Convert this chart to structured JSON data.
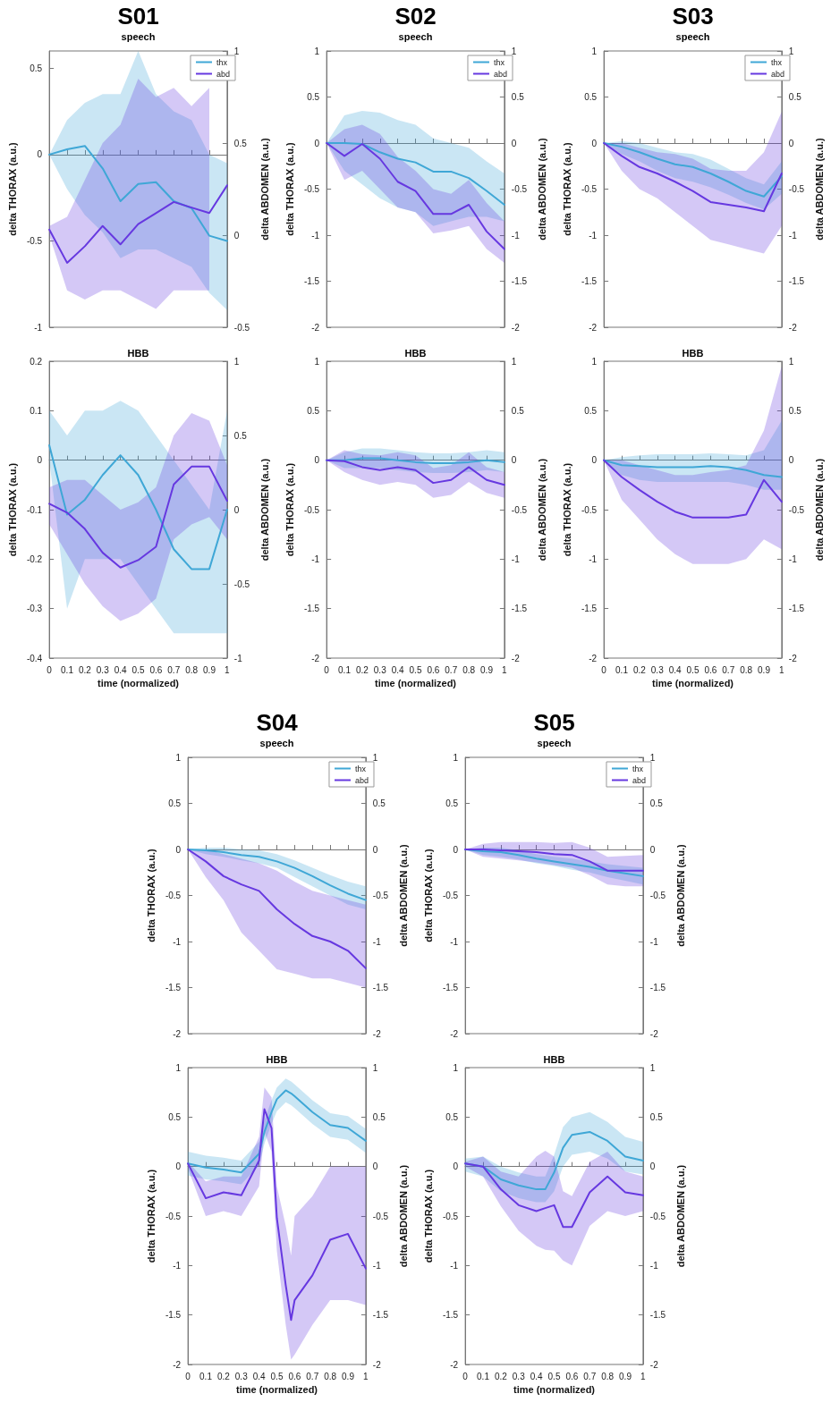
{
  "chart_data": [
    {
      "type": "line",
      "title": "S01",
      "subtitle": "speech",
      "ylabel": "delta THORAX (a.u.)",
      "y2label": "delta ABDOMEN (a.u.)",
      "x": [
        0,
        0.1,
        0.2,
        0.3,
        0.4,
        0.5,
        0.6,
        0.7,
        0.8,
        0.9,
        1
      ],
      "xlim": [
        0,
        1
      ],
      "xticks": [
        0,
        0.1,
        0.2,
        0.3,
        0.4,
        0.5,
        0.6,
        0.7,
        0.8,
        0.9,
        1
      ],
      "ylim": [
        -1,
        0.6
      ],
      "yticks": [
        -1,
        -0.5,
        0,
        0.5
      ],
      "y2lim": [
        -0.5,
        1
      ],
      "y2ticks": [
        -0.5,
        0,
        0.5,
        1
      ],
      "tick_labels": "y",
      "legend": "top right",
      "series": [
        {
          "name": "thx",
          "color": "#3fa7d6",
          "values": [
            0,
            0.03,
            0.05,
            -0.08,
            -0.27,
            -0.17,
            -0.16,
            -0.27,
            -0.31,
            -0.47,
            -0.5
          ],
          "lower": [
            0,
            -0.2,
            -0.35,
            -0.45,
            -0.6,
            -0.55,
            -0.55,
            -0.6,
            -0.65,
            -0.8,
            -0.9
          ],
          "upper": [
            0,
            0.2,
            0.3,
            0.35,
            0.35,
            0.6,
            0.35,
            0.25,
            0.2,
            0,
            -0.05
          ]
        },
        {
          "name": "abd",
          "color": "#6638e0",
          "axis": "y2",
          "values": [
            0.03,
            -0.15,
            -0.06,
            0.05,
            -0.05,
            0.06,
            0.12,
            0.18,
            0.15,
            0.12,
            0.27
          ],
          "lower": [
            0,
            -0.3,
            -0.35,
            -0.3,
            -0.3,
            -0.35,
            -0.4,
            -0.3,
            -0.3,
            -0.3,
            null
          ],
          "upper": [
            0.05,
            0.1,
            0.3,
            0.5,
            0.6,
            0.85,
            0.75,
            0.8,
            0.7,
            0.8,
            null
          ]
        }
      ]
    },
    {
      "type": "line",
      "title": "S02",
      "subtitle": "speech",
      "ylabel": "delta THORAX (a.u.)",
      "y2label": "delta ABDOMEN (a.u.)",
      "x": [
        0,
        0.1,
        0.2,
        0.3,
        0.4,
        0.5,
        0.6,
        0.7,
        0.8,
        0.9,
        1
      ],
      "xlim": [
        0,
        1
      ],
      "xticks": [
        0,
        0.1,
        0.2,
        0.3,
        0.4,
        0.5,
        0.6,
        0.7,
        0.8,
        0.9,
        1
      ],
      "ylim": [
        -2,
        1
      ],
      "yticks": [
        -2,
        -1.5,
        -1,
        -0.5,
        0,
        0.5,
        1
      ],
      "y2lim": [
        -2,
        1
      ],
      "y2ticks": [
        -2,
        -1.5,
        -1,
        -0.5,
        0,
        0.5,
        1
      ],
      "tick_labels": "y",
      "legend": "top right",
      "series": [
        {
          "name": "thx",
          "color": "#3fa7d6",
          "values": [
            0,
            0,
            -0.01,
            -0.1,
            -0.17,
            -0.21,
            -0.31,
            -0.31,
            -0.38,
            -0.52,
            -0.67
          ],
          "lower": [
            0,
            -0.3,
            -0.45,
            -0.6,
            -0.7,
            -0.75,
            -0.9,
            -0.85,
            -0.8,
            -0.8,
            -0.85
          ],
          "upper": [
            0,
            0.3,
            0.35,
            0.33,
            0.25,
            0.2,
            0.05,
            0,
            -0.05,
            -0.2,
            -0.33
          ]
        },
        {
          "name": "abd",
          "color": "#6638e0",
          "axis": "y2",
          "values": [
            0,
            -0.14,
            -0.01,
            -0.17,
            -0.42,
            -0.52,
            -0.77,
            -0.77,
            -0.67,
            -0.96,
            -1.15
          ],
          "lower": [
            0,
            -0.4,
            -0.3,
            -0.5,
            -0.7,
            -0.75,
            -0.98,
            -0.95,
            -0.9,
            -1.15,
            -1.3
          ],
          "upper": [
            0,
            0.15,
            0.2,
            0.1,
            -0.15,
            -0.3,
            -0.5,
            -0.55,
            -0.4,
            -0.65,
            -0.85
          ]
        }
      ]
    },
    {
      "type": "line",
      "title": "S03",
      "subtitle": "speech",
      "ylabel": "delta THORAX (a.u.)",
      "y2label": "delta ABDOMEN (a.u.)",
      "x": [
        0,
        0.1,
        0.2,
        0.3,
        0.4,
        0.5,
        0.6,
        0.7,
        0.8,
        0.9,
        1
      ],
      "xlim": [
        0,
        1
      ],
      "xticks": [
        0,
        0.1,
        0.2,
        0.3,
        0.4,
        0.5,
        0.6,
        0.7,
        0.8,
        0.9,
        1
      ],
      "ylim": [
        -2,
        1
      ],
      "yticks": [
        -2,
        -1.5,
        -1,
        -0.5,
        0,
        0.5,
        1
      ],
      "y2lim": [
        -2,
        1
      ],
      "y2ticks": [
        -2,
        -1.5,
        -1,
        -0.5,
        0,
        0.5,
        1
      ],
      "tick_labels": "y",
      "legend": "top right",
      "series": [
        {
          "name": "thx",
          "color": "#3fa7d6",
          "values": [
            0,
            -0.04,
            -0.1,
            -0.17,
            -0.23,
            -0.26,
            -0.33,
            -0.42,
            -0.52,
            -0.58,
            -0.36
          ],
          "lower": [
            0,
            -0.12,
            -0.2,
            -0.3,
            -0.38,
            -0.42,
            -0.48,
            -0.56,
            -0.65,
            -0.72,
            -0.55
          ],
          "upper": [
            0,
            0.02,
            0,
            -0.05,
            -0.1,
            -0.12,
            -0.18,
            -0.28,
            -0.38,
            -0.45,
            -0.2
          ]
        },
        {
          "name": "abd",
          "color": "#6638e0",
          "axis": "y2",
          "values": [
            0,
            -0.14,
            -0.26,
            -0.33,
            -0.42,
            -0.52,
            -0.64,
            -0.67,
            -0.7,
            -0.74,
            -0.33
          ],
          "lower": [
            0,
            -0.3,
            -0.5,
            -0.6,
            -0.75,
            -0.9,
            -1.05,
            -1.1,
            -1.15,
            -1.2,
            -0.9
          ],
          "upper": [
            0,
            0,
            -0.05,
            -0.1,
            -0.12,
            -0.17,
            -0.28,
            -0.3,
            -0.3,
            -0.1,
            0.34
          ]
        }
      ]
    },
    {
      "type": "line",
      "title": "HBB",
      "xlabel": "time (normalized)",
      "ylabel": "delta THORAX (a.u.)",
      "y2label": "delta ABDOMEN (a.u.)",
      "x": [
        0,
        0.1,
        0.2,
        0.3,
        0.4,
        0.5,
        0.6,
        0.7,
        0.8,
        0.9,
        1
      ],
      "xlim": [
        0,
        1
      ],
      "xticks": [
        0,
        0.1,
        0.2,
        0.3,
        0.4,
        0.5,
        0.6,
        0.7,
        0.8,
        0.9,
        1
      ],
      "ylim": [
        -0.4,
        0.2
      ],
      "yticks": [
        -0.4,
        -0.3,
        -0.2,
        -0.1,
        0,
        0.1,
        0.2
      ],
      "y2lim": [
        -1,
        1
      ],
      "y2ticks": [
        -1,
        -0.5,
        0,
        0.5,
        1
      ],
      "series": [
        {
          "color": "#3fa7d6",
          "values": [
            0.03,
            -0.11,
            -0.08,
            -0.03,
            0.01,
            -0.03,
            -0.1,
            -0.18,
            -0.22,
            -0.22,
            -0.1
          ],
          "lower": [
            0,
            -0.3,
            -0.2,
            -0.2,
            -0.2,
            -0.25,
            -0.3,
            -0.35,
            -0.35,
            -0.35,
            -0.35
          ],
          "upper": [
            0.1,
            0.05,
            0.1,
            0.1,
            0.12,
            0.1,
            0.05,
            0,
            -0.05,
            -0.1,
            0.1
          ]
        },
        {
          "color": "#6638e0",
          "axis": "y2",
          "values": [
            0.04,
            -0.02,
            -0.13,
            -0.29,
            -0.39,
            -0.34,
            -0.25,
            0.17,
            0.29,
            0.29,
            0.06
          ],
          "lower": [
            -0.1,
            -0.3,
            -0.5,
            -0.65,
            -0.75,
            -0.7,
            -0.6,
            -0.2,
            -0.1,
            -0.05,
            -0.2
          ],
          "upper": [
            0.15,
            0.2,
            0.2,
            0.1,
            0,
            0.05,
            0.15,
            0.5,
            0.65,
            0.6,
            0.3
          ]
        }
      ]
    },
    {
      "type": "line",
      "title": "HBB",
      "xlabel": "time (normalized)",
      "ylabel": "delta THORAX (a.u.)",
      "y2label": "delta ABDOMEN (a.u.)",
      "x": [
        0,
        0.1,
        0.2,
        0.3,
        0.4,
        0.5,
        0.6,
        0.7,
        0.8,
        0.9,
        1
      ],
      "xlim": [
        0,
        1
      ],
      "xticks": [
        0,
        0.1,
        0.2,
        0.3,
        0.4,
        0.5,
        0.6,
        0.7,
        0.8,
        0.9,
        1
      ],
      "ylim": [
        -2,
        1
      ],
      "yticks": [
        -2,
        -1.5,
        -1,
        -0.5,
        0,
        0.5,
        1
      ],
      "y2lim": [
        -2,
        1
      ],
      "y2ticks": [
        -2,
        -1.5,
        -1,
        -0.5,
        0,
        0.5,
        1
      ],
      "series": [
        {
          "color": "#3fa7d6",
          "values": [
            0,
            0,
            0.02,
            0.02,
            0,
            -0.02,
            -0.03,
            -0.03,
            -0.02,
            0,
            -0.02
          ],
          "lower": [
            0,
            -0.08,
            -0.08,
            -0.08,
            -0.1,
            -0.12,
            -0.13,
            -0.13,
            -0.12,
            -0.1,
            -0.12
          ],
          "upper": [
            0,
            0.08,
            0.12,
            0.12,
            0.1,
            0.08,
            0.07,
            0.07,
            0.08,
            0.1,
            0.08
          ]
        },
        {
          "color": "#6638e0",
          "axis": "y2",
          "values": [
            0,
            -0.01,
            -0.07,
            -0.1,
            -0.07,
            -0.1,
            -0.23,
            -0.2,
            -0.07,
            -0.2,
            -0.25
          ],
          "lower": [
            0,
            -0.12,
            -0.2,
            -0.25,
            -0.22,
            -0.25,
            -0.38,
            -0.35,
            -0.22,
            -0.33,
            -0.38
          ],
          "upper": [
            0,
            0.1,
            0.06,
            0.05,
            0.08,
            0.05,
            -0.08,
            -0.05,
            0.08,
            -0.07,
            -0.12
          ]
        }
      ]
    },
    {
      "type": "line",
      "title": "HBB",
      "xlabel": "time (normalized)",
      "ylabel": "delta THORAX (a.u.)",
      "y2label": "delta ABDOMEN (a.u.)",
      "x": [
        0,
        0.1,
        0.2,
        0.3,
        0.4,
        0.5,
        0.6,
        0.7,
        0.8,
        0.9,
        1
      ],
      "xlim": [
        0,
        1
      ],
      "xticks": [
        0,
        0.1,
        0.2,
        0.3,
        0.4,
        0.5,
        0.6,
        0.7,
        0.8,
        0.9,
        1
      ],
      "ylim": [
        -2,
        1
      ],
      "yticks": [
        -2,
        -1.5,
        -1,
        -0.5,
        0,
        0.5,
        1
      ],
      "y2lim": [
        -2,
        1
      ],
      "y2ticks": [
        -2,
        -1.5,
        -1,
        -0.5,
        0,
        0.5,
        1
      ],
      "series": [
        {
          "color": "#3fa7d6",
          "values": [
            0,
            -0.05,
            -0.06,
            -0.07,
            -0.07,
            -0.07,
            -0.06,
            -0.07,
            -0.1,
            -0.15,
            -0.17
          ],
          "lower": [
            0,
            -0.15,
            -0.2,
            -0.22,
            -0.22,
            -0.22,
            -0.22,
            -0.22,
            -0.25,
            -0.3,
            -0.3
          ],
          "upper": [
            0,
            0.03,
            0.05,
            0.06,
            0.06,
            0.06,
            0.07,
            0.06,
            0.05,
            0.1,
            0.4
          ]
        },
        {
          "color": "#6638e0",
          "axis": "y2",
          "values": [
            0,
            -0.17,
            -0.3,
            -0.42,
            -0.52,
            -0.58,
            -0.58,
            -0.58,
            -0.55,
            -0.2,
            -0.42
          ],
          "lower": [
            0,
            -0.4,
            -0.6,
            -0.8,
            -0.95,
            -1.05,
            -1.05,
            -1.05,
            -1,
            -0.8,
            -0.9
          ],
          "upper": [
            0,
            0,
            -0.05,
            -0.1,
            -0.15,
            -0.15,
            -0.12,
            -0.1,
            -0.05,
            0.3,
            0.95
          ]
        }
      ]
    },
    {
      "type": "line",
      "title": "S04",
      "subtitle": "speech",
      "ylabel": "delta THORAX (a.u.)",
      "y2label": "delta ABDOMEN (a.u.)",
      "x": [
        0,
        0.1,
        0.2,
        0.3,
        0.4,
        0.5,
        0.6,
        0.7,
        0.8,
        0.9,
        1
      ],
      "xlim": [
        0,
        1
      ],
      "xticks": [
        0,
        0.1,
        0.2,
        0.3,
        0.4,
        0.5,
        0.6,
        0.7,
        0.8,
        0.9,
        1
      ],
      "ylim": [
        -2,
        1
      ],
      "yticks": [
        -2,
        -1.5,
        -1,
        -0.5,
        0,
        0.5,
        1
      ],
      "y2lim": [
        -2,
        1
      ],
      "y2ticks": [
        -2,
        -1.5,
        -1,
        -0.5,
        0,
        0.5,
        1
      ],
      "tick_labels": "y",
      "legend": "top right",
      "series": [
        {
          "name": "thx",
          "color": "#3fa7d6",
          "values": [
            0,
            -0.01,
            -0.03,
            -0.06,
            -0.08,
            -0.13,
            -0.2,
            -0.29,
            -0.39,
            -0.48,
            -0.55
          ],
          "lower": [
            0,
            -0.05,
            -0.08,
            -0.12,
            -0.15,
            -0.2,
            -0.3,
            -0.4,
            -0.5,
            -0.6,
            -0.65
          ],
          "upper": [
            0,
            0.02,
            0.02,
            0,
            -0.01,
            -0.05,
            -0.12,
            -0.2,
            -0.28,
            -0.35,
            -0.4
          ]
        },
        {
          "name": "abd",
          "color": "#6638e0",
          "axis": "y2",
          "values": [
            0,
            -0.13,
            -0.29,
            -0.38,
            -0.45,
            -0.65,
            -0.81,
            -0.94,
            -1,
            -1.1,
            -1.29
          ],
          "lower": [
            0,
            -0.3,
            -0.55,
            -0.9,
            -1.1,
            -1.3,
            -1.35,
            -1.4,
            -1.4,
            -1.45,
            -1.5
          ],
          "upper": [
            0,
            0,
            -0.05,
            -0.1,
            -0.15,
            -0.23,
            -0.35,
            -0.45,
            -0.5,
            -0.55,
            -0.6
          ]
        }
      ]
    },
    {
      "type": "line",
      "title": "S05",
      "subtitle": "speech",
      "ylabel": "delta THORAX (a.u.)",
      "y2label": "delta ABDOMEN (a.u.)",
      "x": [
        0,
        0.1,
        0.2,
        0.3,
        0.4,
        0.5,
        0.6,
        0.7,
        0.8,
        0.9,
        1
      ],
      "xlim": [
        0,
        1
      ],
      "xticks": [
        0,
        0.1,
        0.2,
        0.3,
        0.4,
        0.5,
        0.6,
        0.7,
        0.8,
        0.9,
        1
      ],
      "ylim": [
        -2,
        1
      ],
      "yticks": [
        -2,
        -1.5,
        -1,
        -0.5,
        0,
        0.5,
        1
      ],
      "y2lim": [
        -2,
        1
      ],
      "y2ticks": [
        -2,
        -1.5,
        -1,
        -0.5,
        0,
        0.5,
        1
      ],
      "tick_labels": "y",
      "legend": "top right",
      "series": [
        {
          "name": "thx",
          "color": "#3fa7d6",
          "values": [
            0,
            -0.02,
            -0.03,
            -0.06,
            -0.1,
            -0.13,
            -0.16,
            -0.19,
            -0.23,
            -0.26,
            -0.29
          ],
          "lower": [
            0,
            -0.06,
            -0.08,
            -0.11,
            -0.15,
            -0.18,
            -0.22,
            -0.25,
            -0.3,
            -0.34,
            -0.38
          ],
          "upper": [
            0,
            0.02,
            0.02,
            -0.01,
            -0.05,
            -0.08,
            -0.1,
            -0.13,
            -0.16,
            -0.18,
            -0.2
          ]
        },
        {
          "name": "abd",
          "color": "#6638e0",
          "axis": "y2",
          "values": [
            0,
            0,
            -0.01,
            -0.02,
            -0.03,
            -0.05,
            -0.06,
            -0.13,
            -0.23,
            -0.23,
            -0.23
          ],
          "lower": [
            0,
            -0.08,
            -0.1,
            -0.12,
            -0.14,
            -0.17,
            -0.2,
            -0.28,
            -0.38,
            -0.4,
            -0.4
          ],
          "upper": [
            0,
            0.06,
            0.08,
            0.08,
            0.08,
            0.07,
            0.08,
            0.02,
            -0.08,
            -0.07,
            -0.06
          ]
        }
      ]
    },
    {
      "type": "line",
      "title": "HBB",
      "xlabel": "time (normalized)",
      "ylabel": "delta THORAX (a.u.)",
      "y2label": "delta ABDOMEN (a.u.)",
      "x": [
        0,
        0.1,
        0.2,
        0.3,
        0.4,
        0.43,
        0.47,
        0.5,
        0.55,
        0.58,
        0.6,
        0.7,
        0.8,
        0.9,
        1
      ],
      "xlim": [
        0,
        1
      ],
      "xticks": [
        0,
        0.1,
        0.2,
        0.3,
        0.4,
        0.5,
        0.6,
        0.7,
        0.8,
        0.9,
        1
      ],
      "ylim": [
        -2,
        1
      ],
      "yticks": [
        -2,
        -1.5,
        -1,
        -0.5,
        0,
        0.5,
        1
      ],
      "y2lim": [
        -2,
        1
      ],
      "y2ticks": [
        -2,
        -1.5,
        -1,
        -0.5,
        0,
        0.5,
        1
      ],
      "series": [
        {
          "color": "#3fa7d6",
          "values": [
            0.03,
            -0.01,
            -0.03,
            -0.06,
            0.13,
            0.35,
            0.55,
            0.68,
            0.77,
            0.74,
            0.71,
            0.55,
            0.42,
            0.39,
            0.26
          ],
          "lower": [
            -0.09,
            -0.13,
            -0.15,
            -0.18,
            0.01,
            0.23,
            0.43,
            0.56,
            0.65,
            0.62,
            0.59,
            0.43,
            0.3,
            0.27,
            0.14
          ],
          "upper": [
            0.15,
            0.11,
            0.09,
            0.06,
            0.25,
            0.47,
            0.67,
            0.8,
            0.89,
            0.86,
            0.83,
            0.67,
            0.54,
            0.51,
            0.38
          ]
        },
        {
          "color": "#6638e0",
          "axis": "y2",
          "values": [
            0.03,
            -0.32,
            -0.26,
            -0.29,
            0.06,
            0.58,
            0.39,
            -0.52,
            -1.2,
            -1.55,
            -1.35,
            -1.1,
            -0.74,
            -0.68,
            -1.03
          ],
          "lower": [
            -0.02,
            -0.5,
            -0.45,
            -0.5,
            -0.2,
            0.35,
            0.15,
            -0.85,
            -1.6,
            -1.95,
            -1.9,
            -1.6,
            -1.35,
            -1.35,
            -1.4
          ],
          "upper": [
            0.05,
            -0.15,
            -0.1,
            -0.1,
            0.3,
            0.8,
            0.7,
            -0.2,
            -0.6,
            -0.9,
            -0.5,
            -0.3,
            0,
            0,
            0
          ]
        }
      ]
    },
    {
      "type": "line",
      "title": "HBB",
      "xlabel": "time (normalized)",
      "ylabel": "delta THORAX (a.u.)",
      "y2label": "delta ABDOMEN (a.u.)",
      "x": [
        0,
        0.1,
        0.2,
        0.3,
        0.4,
        0.45,
        0.5,
        0.55,
        0.6,
        0.7,
        0.8,
        0.9,
        1
      ],
      "xlim": [
        0,
        1
      ],
      "xticks": [
        0,
        0.1,
        0.2,
        0.3,
        0.4,
        0.5,
        0.6,
        0.7,
        0.8,
        0.9,
        1
      ],
      "ylim": [
        -2,
        1
      ],
      "yticks": [
        -2,
        -1.5,
        -1,
        -0.5,
        0,
        0.5,
        1
      ],
      "y2lim": [
        -2,
        1
      ],
      "y2ticks": [
        -2,
        -1.5,
        -1,
        -0.5,
        0,
        0.5,
        1
      ],
      "series": [
        {
          "color": "#3fa7d6",
          "values": [
            0.03,
            0,
            -0.13,
            -0.19,
            -0.23,
            -0.23,
            -0.06,
            0.19,
            0.32,
            0.35,
            0.26,
            0.1,
            0.06
          ],
          "lower": [
            -0.05,
            -0.1,
            -0.25,
            -0.32,
            -0.36,
            -0.36,
            -0.25,
            0,
            0.12,
            0.15,
            0.08,
            -0.05,
            -0.08
          ],
          "upper": [
            0.08,
            0.1,
            0,
            -0.06,
            -0.1,
            -0.1,
            0.12,
            0.4,
            0.5,
            0.55,
            0.45,
            0.3,
            0.25
          ]
        },
        {
          "color": "#6638e0",
          "axis": "y2",
          "values": [
            0.03,
            0,
            -0.23,
            -0.39,
            -0.45,
            -0.42,
            -0.39,
            -0.61,
            -0.61,
            -0.26,
            -0.1,
            -0.26,
            -0.29
          ],
          "lower": [
            0,
            -0.1,
            -0.4,
            -0.65,
            -0.8,
            -0.84,
            -0.85,
            -0.95,
            -1,
            -0.6,
            -0.45,
            -0.5,
            -0.45
          ],
          "upper": [
            0.05,
            0.1,
            -0.05,
            -0.1,
            0.1,
            0.16,
            0.1,
            -0.25,
            -0.3,
            0.05,
            0.15,
            -0.05,
            -0.1
          ]
        }
      ]
    }
  ]
}
